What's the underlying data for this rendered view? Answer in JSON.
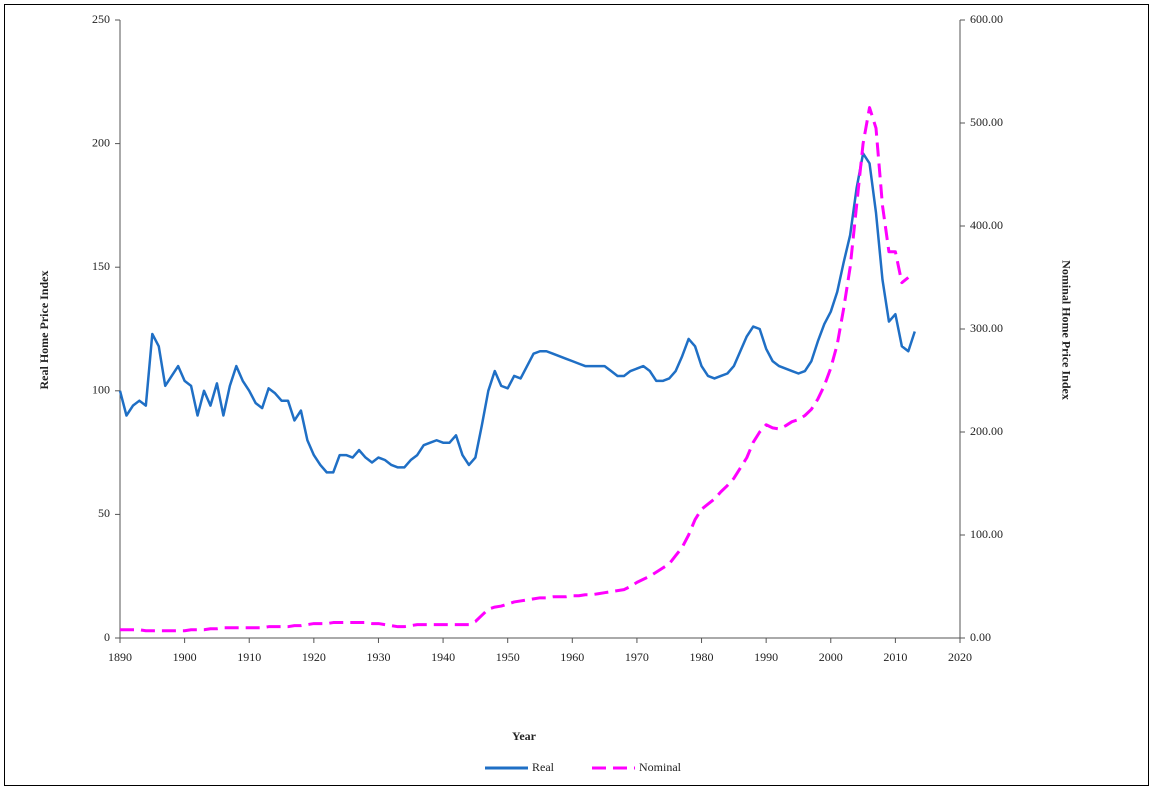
{
  "chart_data": {
    "type": "line",
    "x_label": "Year",
    "y_label": "Real Home Price Index",
    "y2_label": "Nominal Home Price Index",
    "x": [
      1890,
      1891,
      1892,
      1893,
      1894,
      1895,
      1896,
      1897,
      1898,
      1899,
      1900,
      1901,
      1902,
      1903,
      1904,
      1905,
      1906,
      1907,
      1908,
      1909,
      1910,
      1911,
      1912,
      1913,
      1914,
      1915,
      1916,
      1917,
      1918,
      1919,
      1920,
      1921,
      1922,
      1923,
      1924,
      1925,
      1926,
      1927,
      1928,
      1929,
      1930,
      1931,
      1932,
      1933,
      1934,
      1935,
      1936,
      1937,
      1938,
      1939,
      1940,
      1941,
      1942,
      1943,
      1944,
      1945,
      1946,
      1947,
      1948,
      1949,
      1950,
      1951,
      1952,
      1953,
      1954,
      1955,
      1956,
      1957,
      1958,
      1959,
      1960,
      1961,
      1962,
      1963,
      1964,
      1965,
      1966,
      1967,
      1968,
      1969,
      1970,
      1971,
      1972,
      1973,
      1974,
      1975,
      1976,
      1977,
      1978,
      1979,
      1980,
      1981,
      1982,
      1983,
      1984,
      1985,
      1986,
      1987,
      1988,
      1989,
      1990,
      1991,
      1992,
      1993,
      1994,
      1995,
      1996,
      1997,
      1998,
      1999,
      2000,
      2001,
      2002,
      2003,
      2004,
      2005,
      2006,
      2007,
      2008,
      2009,
      2010,
      2011,
      2012,
      2013
    ],
    "series": [
      {
        "name": "Real",
        "color": "#1f6fc5",
        "linestyle": "solid",
        "values": [
          100,
          90,
          94,
          96,
          94,
          123,
          118,
          102,
          106,
          110,
          104,
          102,
          90,
          100,
          94,
          103,
          90,
          102,
          110,
          104,
          100,
          95,
          93,
          101,
          99,
          96,
          96,
          88,
          92,
          80,
          74,
          70,
          67,
          67,
          74,
          74,
          73,
          76,
          73,
          71,
          73,
          72,
          70,
          69,
          69,
          72,
          74,
          78,
          79,
          80,
          79,
          79,
          82,
          74,
          70,
          73,
          86,
          100,
          108,
          102,
          101,
          106,
          105,
          110,
          115,
          116,
          116,
          115,
          114,
          113,
          112,
          111,
          110,
          110,
          110,
          110,
          108,
          106,
          106,
          108,
          109,
          110,
          108,
          104,
          104,
          105,
          108,
          114,
          121,
          118,
          110,
          106,
          105,
          106,
          107,
          110,
          116,
          122,
          126,
          125,
          117,
          112,
          110,
          109,
          108,
          107,
          108,
          112,
          120,
          127,
          132,
          140,
          152,
          163,
          182,
          196,
          192,
          172,
          145,
          128,
          131,
          118,
          116,
          124
        ]
      },
      {
        "name": "Nominal",
        "color": "#ff00ff",
        "linestyle": "dashed",
        "axis": "y2",
        "values": [
          8,
          8,
          8,
          8,
          7,
          7,
          7,
          7,
          7,
          7,
          7,
          8,
          8,
          8,
          9,
          9,
          10,
          10,
          10,
          10,
          10,
          10,
          10,
          11,
          11,
          11,
          11,
          12,
          12,
          13,
          14,
          14,
          14,
          15,
          15,
          15,
          15,
          15,
          15,
          14,
          14,
          13,
          12,
          11,
          11,
          12,
          13,
          13,
          13,
          13,
          13,
          13,
          13,
          13,
          13,
          16,
          22,
          28,
          30,
          31,
          33,
          35,
          36,
          37,
          38,
          39,
          39,
          40,
          40,
          40,
          41,
          41,
          42,
          42,
          43,
          44,
          45,
          46,
          47,
          50,
          54,
          57,
          60,
          64,
          68,
          72,
          80,
          88,
          100,
          115,
          125,
          130,
          135,
          142,
          148,
          155,
          165,
          175,
          190,
          200,
          207,
          204,
          203,
          206,
          210,
          212,
          216,
          222,
          232,
          245,
          262,
          285,
          320,
          360,
          420,
          480,
          515,
          495,
          420,
          375,
          375,
          345,
          350,
          null
        ]
      }
    ],
    "xlim": [
      1890,
      2020
    ],
    "xticks": [
      1890,
      1900,
      1910,
      1920,
      1930,
      1940,
      1950,
      1960,
      1970,
      1980,
      1990,
      2000,
      2010,
      2020
    ],
    "ylim": [
      0,
      250
    ],
    "yticks": [
      0,
      50,
      100,
      150,
      200,
      250
    ],
    "y2lim": [
      0,
      600
    ],
    "y2ticks": [
      {
        "value": 0,
        "label": "0.00"
      },
      {
        "value": 100,
        "label": "100.00"
      },
      {
        "value": 200,
        "label": "200.00"
      },
      {
        "value": 300,
        "label": "300.00"
      },
      {
        "value": 400,
        "label": "400.00"
      },
      {
        "value": 500,
        "label": "500.00"
      },
      {
        "value": 600,
        "label": "600.00"
      }
    ],
    "legend": "bottom",
    "grid": false
  }
}
